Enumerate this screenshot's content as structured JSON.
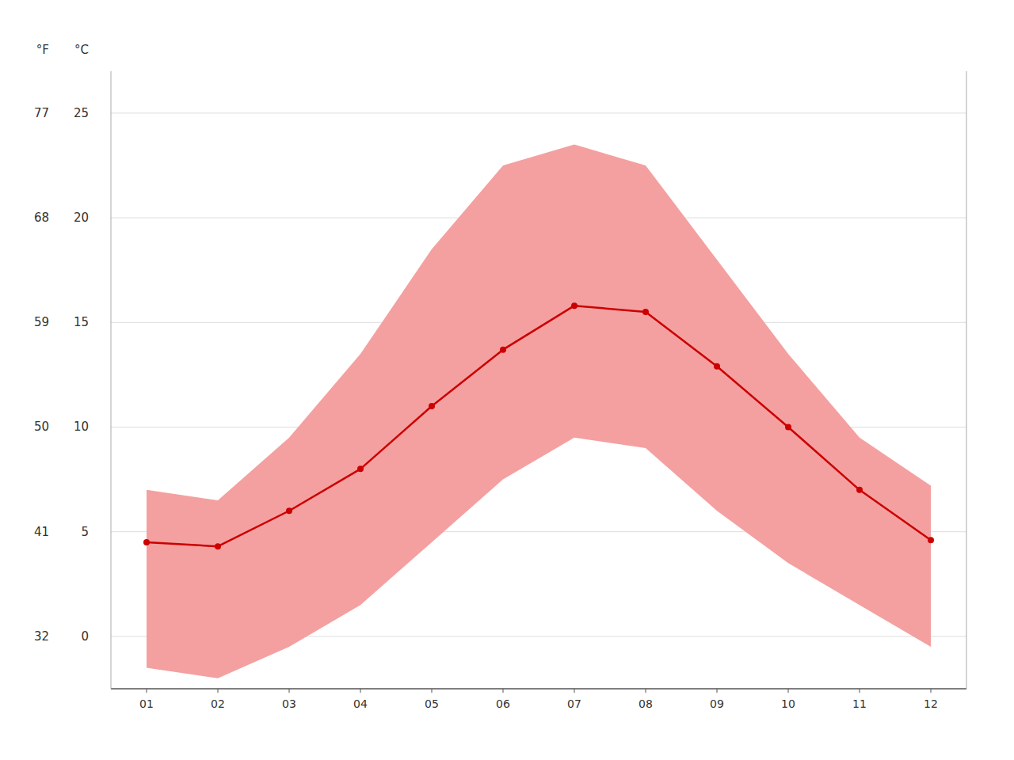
{
  "chart_data": {
    "type": "line",
    "x": [
      1,
      2,
      3,
      4,
      5,
      6,
      7,
      8,
      9,
      10,
      11,
      12
    ],
    "xlim": [
      0.5,
      12.5
    ],
    "xticks": [
      {
        "value": 1,
        "label": "01"
      },
      {
        "value": 2,
        "label": "02"
      },
      {
        "value": 3,
        "label": "03"
      },
      {
        "value": 4,
        "label": "04"
      },
      {
        "value": 5,
        "label": "05"
      },
      {
        "value": 6,
        "label": "06"
      },
      {
        "value": 7,
        "label": "07"
      },
      {
        "value": 8,
        "label": "08"
      },
      {
        "value": 9,
        "label": "09"
      },
      {
        "value": 10,
        "label": "10"
      },
      {
        "value": 11,
        "label": "11"
      },
      {
        "value": 12,
        "label": "12"
      }
    ],
    "ylabel": "°C",
    "ylim": [
      -2.5,
      27
    ],
    "yticks": [
      0,
      5,
      10,
      15,
      20,
      25
    ],
    "y2label": "°F",
    "y2lim": [
      27.5,
      80.6
    ],
    "y2ticks": [
      32,
      41,
      50,
      59,
      68,
      77
    ],
    "grid": true,
    "series": [
      {
        "type": "area",
        "color": "#f4a0a0",
        "low": [
          -1.5,
          -2.0,
          -0.5,
          1.5,
          4.5,
          7.5,
          9.5,
          9.0,
          6.0,
          3.5,
          1.5,
          -0.5
        ],
        "high": [
          7.0,
          6.5,
          9.5,
          13.5,
          18.5,
          22.5,
          23.5,
          22.5,
          18.0,
          13.5,
          9.5,
          7.2
        ]
      },
      {
        "type": "line",
        "color": "#cc0000",
        "marker": "circle",
        "values": [
          4.5,
          4.3,
          6.0,
          8.0,
          11.0,
          13.7,
          15.8,
          15.5,
          12.9,
          10.0,
          7.0,
          4.6
        ]
      }
    ]
  }
}
